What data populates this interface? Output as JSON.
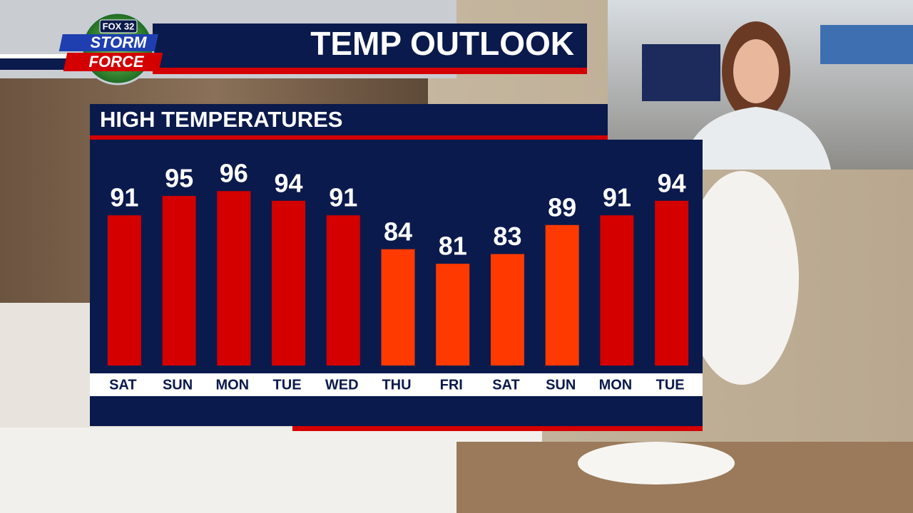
{
  "header": {
    "logo_top": "FOX 32",
    "logo_line1": "STORM",
    "logo_line2": "FORCE",
    "title": "TEMP OUTLOOK"
  },
  "chart_data": {
    "type": "bar",
    "title": "HIGH TEMPERATURES",
    "categories": [
      "SAT",
      "SUN",
      "MON",
      "TUE",
      "WED",
      "THU",
      "FRI",
      "SAT",
      "SUN",
      "MON",
      "TUE"
    ],
    "values": [
      91,
      95,
      96,
      94,
      91,
      84,
      81,
      83,
      89,
      91,
      94
    ],
    "colors": [
      "#d40000",
      "#d40000",
      "#d40000",
      "#d40000",
      "#d40000",
      "#ff3a00",
      "#ff3a00",
      "#ff3a00",
      "#ff3a00",
      "#d40000",
      "#d40000"
    ],
    "ylim": [
      60,
      100
    ]
  }
}
